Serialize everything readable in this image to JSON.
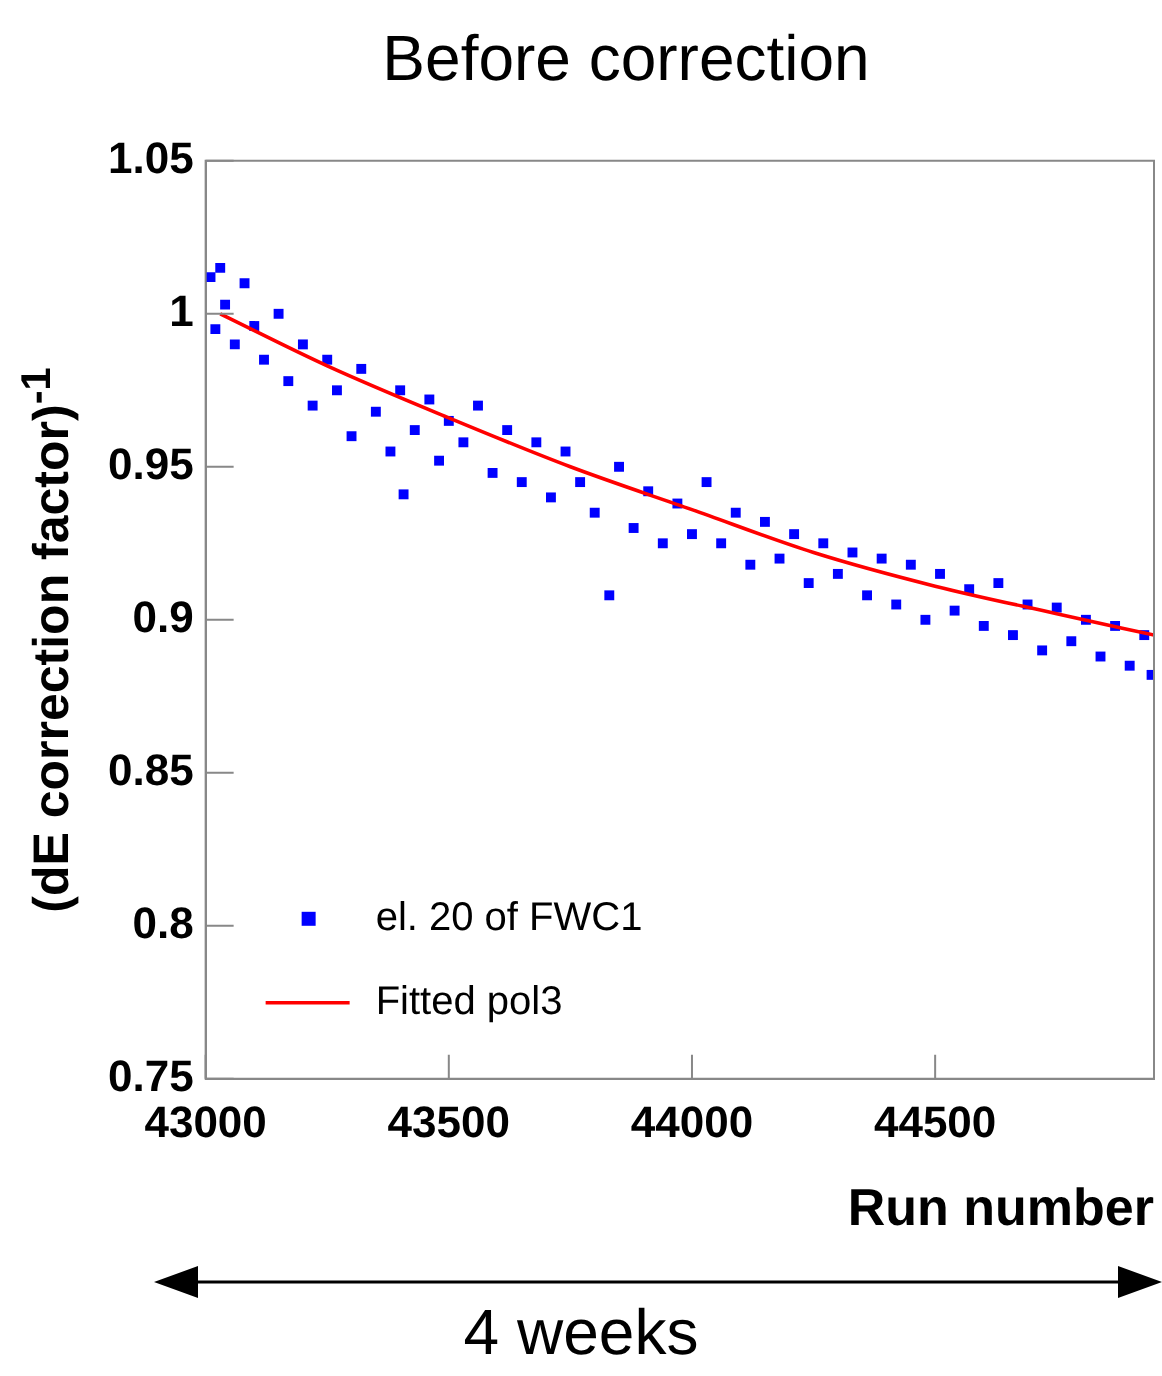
{
  "chart_data": {
    "type": "scatter",
    "title": "Before correction",
    "xlabel": "Run number",
    "ylabel": "(dE correction factor)$^{-1}$",
    "xlim": [
      43000,
      44950
    ],
    "xticks": [
      43000,
      43500,
      44000,
      44500
    ],
    "ylim": [
      0.75,
      1.05
    ],
    "yticks": [
      0.75,
      0.8,
      0.85,
      0.9,
      0.95,
      1,
      1.05
    ],
    "grid": false,
    "legend": "bottom left",
    "marker": "square",
    "annotations": [
      "4 weeks"
    ],
    "series": [
      {
        "name": "el. 20 of FWC1",
        "color": "#0000ff",
        "x": [
          43010,
          43020,
          43030,
          43040,
          43060,
          43080,
          43100,
          43120,
          43150,
          43170,
          43200,
          43220,
          43250,
          43270,
          43300,
          43320,
          43350,
          43380,
          43400,
          43407,
          43430,
          43460,
          43480,
          43500,
          43530,
          43560,
          43590,
          43620,
          43650,
          43680,
          43710,
          43740,
          43770,
          43800,
          43830,
          43850,
          43880,
          43910,
          43940,
          43970,
          44000,
          44030,
          44060,
          44090,
          44120,
          44150,
          44180,
          44210,
          44240,
          44270,
          44300,
          44330,
          44360,
          44390,
          44420,
          44450,
          44480,
          44510,
          44540,
          44570,
          44600,
          44630,
          44660,
          44690,
          44720,
          44750,
          44780,
          44810,
          44840,
          44870,
          44900,
          44930,
          44945
        ],
        "values": [
          1.012,
          0.995,
          1.015,
          1.003,
          0.99,
          1.01,
          0.996,
          0.985,
          1.0,
          0.978,
          0.99,
          0.97,
          0.985,
          0.975,
          0.96,
          0.982,
          0.968,
          0.955,
          0.975,
          0.941,
          0.962,
          0.972,
          0.952,
          0.965,
          0.958,
          0.97,
          0.948,
          0.962,
          0.945,
          0.958,
          0.94,
          0.955,
          0.945,
          0.935,
          0.908,
          0.95,
          0.93,
          0.942,
          0.925,
          0.938,
          0.928,
          0.945,
          0.925,
          0.935,
          0.918,
          0.932,
          0.92,
          0.928,
          0.912,
          0.925,
          0.915,
          0.922,
          0.908,
          0.92,
          0.905,
          0.918,
          0.9,
          0.915,
          0.903,
          0.91,
          0.898,
          0.912,
          0.895,
          0.905,
          0.89,
          0.904,
          0.893,
          0.9,
          0.888,
          0.898,
          0.885,
          0.895,
          0.882
        ]
      },
      {
        "name": "Fitted pol3",
        "type": "line",
        "color": "#ff0000",
        "marker": "none",
        "line_style": "solid",
        "x": [
          43030,
          43250,
          43500,
          43750,
          44000,
          44250,
          44500,
          44750,
          44950
        ],
        "values": [
          1.0,
          0.983,
          0.966,
          0.95,
          0.936,
          0.922,
          0.911,
          0.902,
          0.895
        ]
      }
    ]
  }
}
